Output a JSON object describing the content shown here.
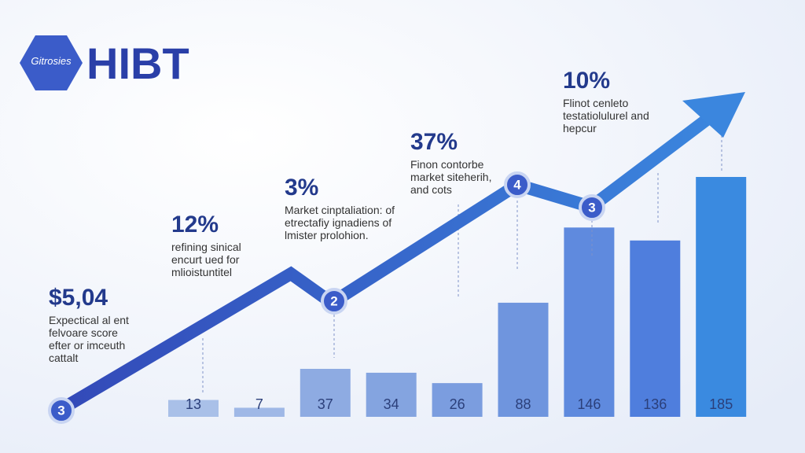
{
  "logo": {
    "badge": "Gitrosies",
    "name": "HIBT"
  },
  "chart_data": {
    "type": "bar",
    "values": [
      13,
      7,
      37,
      34,
      26,
      88,
      146,
      136,
      185
    ],
    "colors": [
      "#a9c0e8",
      "#9fb8e6",
      "#8eabe2",
      "#84a4e0",
      "#7b9ddf",
      "#6f95de",
      "#5f8ade",
      "#4f7edd",
      "#3a8ae0"
    ],
    "markers": [
      "3",
      "2",
      "4",
      "3"
    ],
    "annotations": [
      {
        "title": "$5,04",
        "lines": [
          "Expectical al ent",
          "felvoare score",
          "efter or imceuth",
          "cattalt"
        ]
      },
      {
        "title": "12%",
        "lines": [
          "refining sinical",
          "encurt ued for",
          "mlioistuntitel"
        ]
      },
      {
        "title": "3%",
        "lines": [
          "Market cinptaliation: of",
          "etrectafiy ignadiens of",
          "lmister prolohion."
        ]
      },
      {
        "title": "37%",
        "lines": [
          "Finon contorbe",
          "market siteherih,",
          "and cots"
        ]
      },
      {
        "title": "10%",
        "lines": [
          "Flinot cenleto",
          "testatiolulurel and",
          "hepcur"
        ]
      }
    ]
  }
}
